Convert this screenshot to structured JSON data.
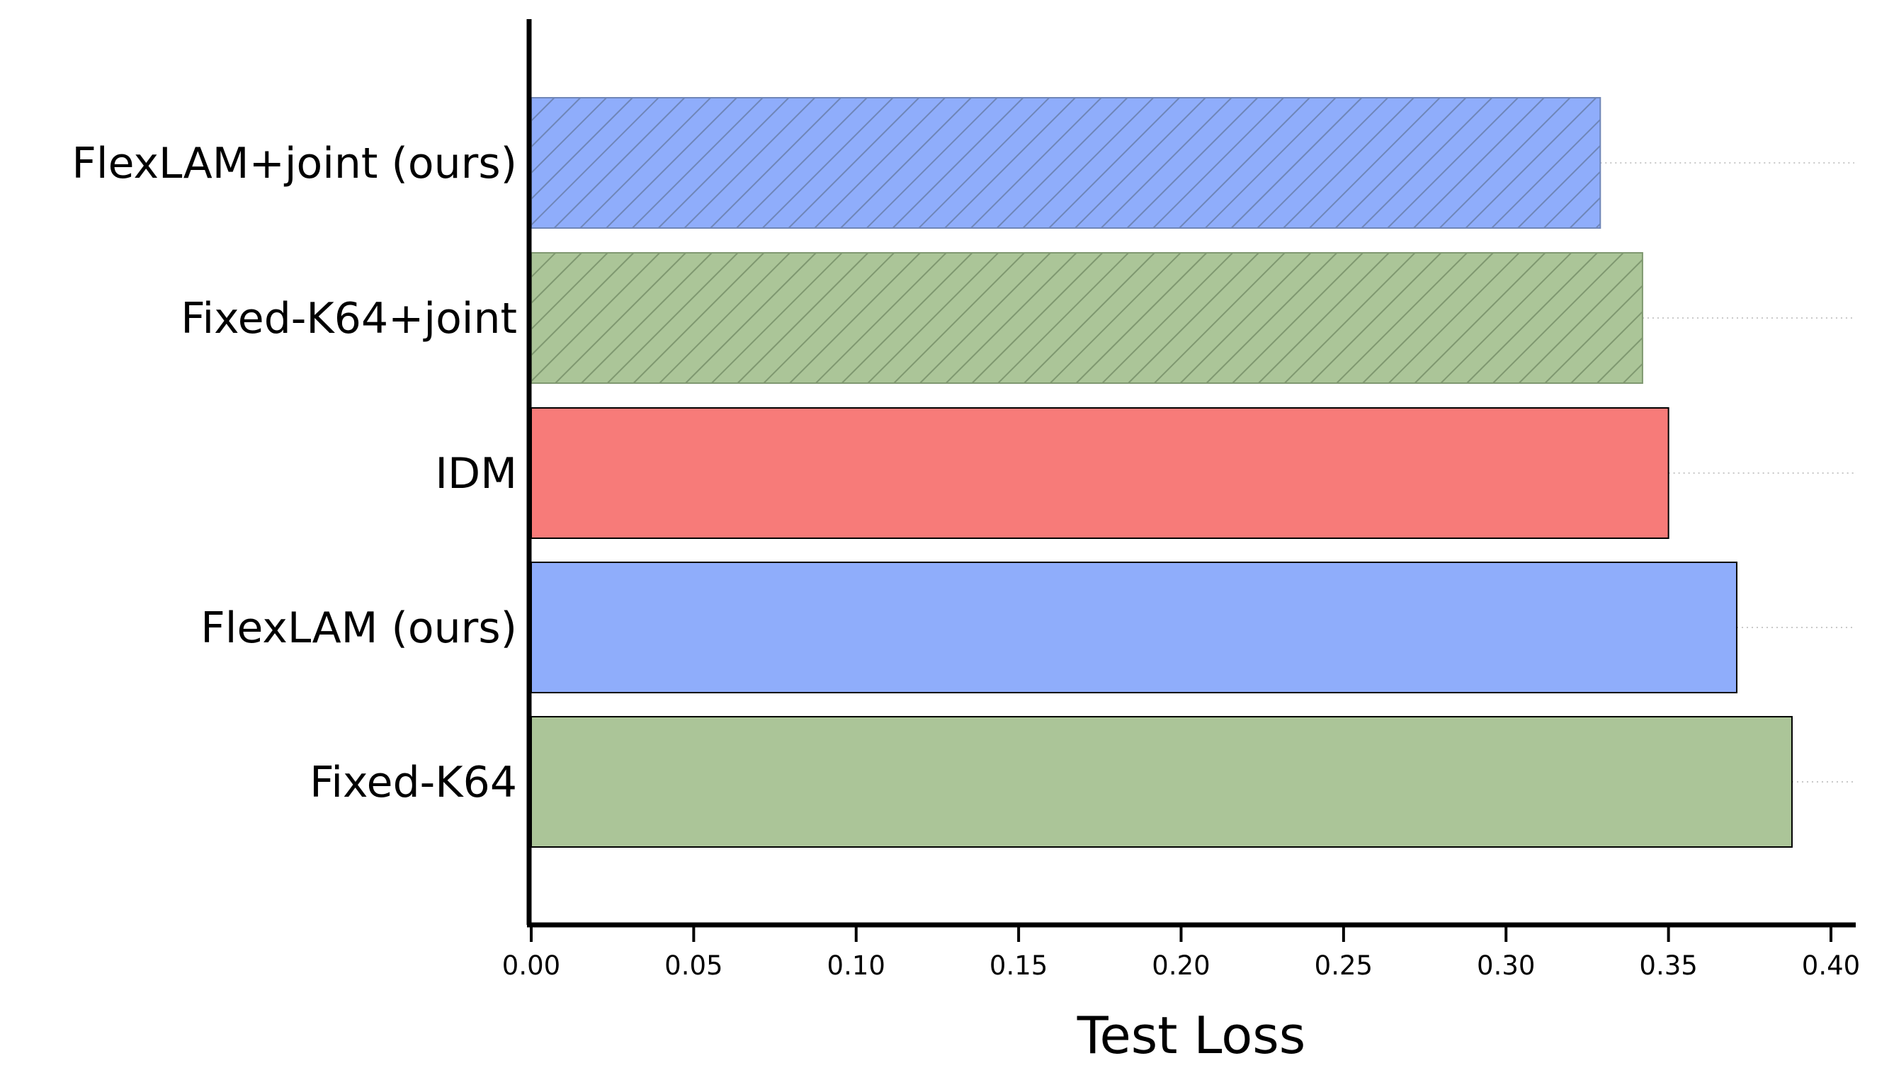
{
  "chart_data": {
    "type": "bar",
    "orientation": "horizontal",
    "categories": [
      "FlexLAM+joint (ours)",
      "Fixed-K64+joint",
      "IDM",
      "FlexLAM (ours)",
      "Fixed-K64"
    ],
    "values": [
      0.329,
      0.342,
      0.35,
      0.371,
      0.388
    ],
    "bar_colors": [
      "#8fadfb",
      "#abc598",
      "#f77b79",
      "#8fadfb",
      "#abc598"
    ],
    "hatched": [
      true,
      true,
      false,
      false,
      false
    ],
    "xlabel": "Test Loss",
    "ylabel": "",
    "title": "",
    "xlim": [
      0,
      0.4
    ],
    "xticks": [
      "0.00",
      "0.05",
      "0.10",
      "0.15",
      "0.20",
      "0.25",
      "0.30",
      "0.35",
      "0.40"
    ],
    "grid": "dotted horizontal guide lines from bar end to right edge",
    "legend": "none"
  }
}
